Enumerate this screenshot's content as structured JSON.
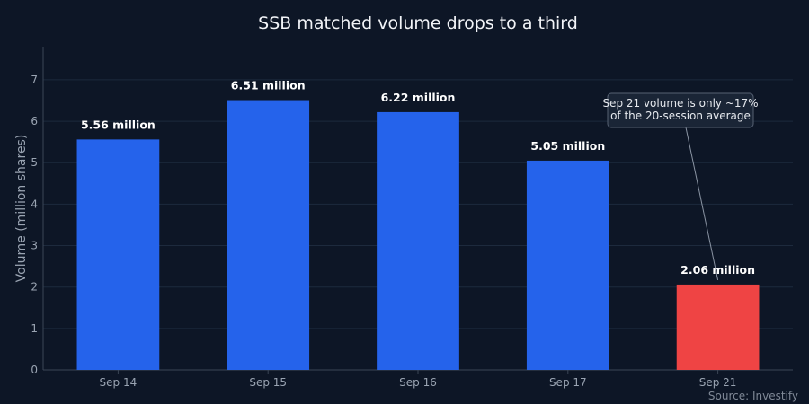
{
  "chart_data": {
    "type": "bar",
    "title": "SSB matched volume drops to a third",
    "ylabel": "Volume (million shares)",
    "xlabel": "",
    "categories": [
      "Sep 14",
      "Sep 15",
      "Sep 16",
      "Sep 17",
      "Sep 21"
    ],
    "values": [
      5.56,
      6.51,
      6.22,
      5.05,
      2.06
    ],
    "data_labels": [
      "5.56 million",
      "6.51 million",
      "6.22 million",
      "5.05 million",
      "2.06 million"
    ],
    "bar_colors": [
      "#2563eb",
      "#2563eb",
      "#2563eb",
      "#2563eb",
      "#ef4444"
    ],
    "ylim": [
      0,
      7.8
    ],
    "yticks": [
      0,
      1,
      2,
      3,
      4,
      5,
      6,
      7
    ],
    "grid": true,
    "annotation": {
      "lines": [
        "Sep 21 volume is only ~17%",
        "of the 20-session average"
      ],
      "target_index": 4
    },
    "source": "Source: Investify"
  }
}
